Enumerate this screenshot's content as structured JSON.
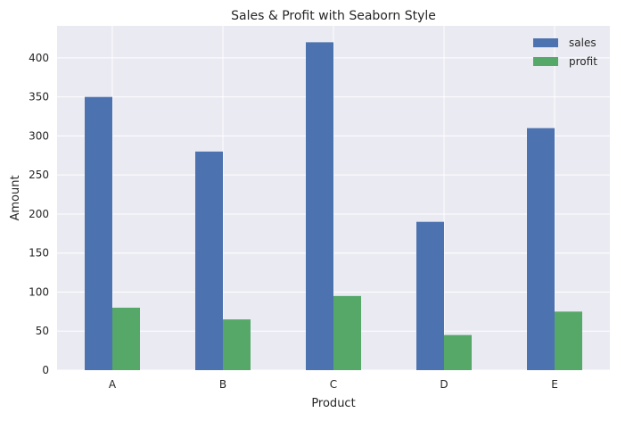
{
  "chart_data": {
    "type": "bar",
    "title": "Sales & Profit with Seaborn Style",
    "xlabel": "Product",
    "ylabel": "Amount",
    "categories": [
      "A",
      "B",
      "C",
      "D",
      "E"
    ],
    "series": [
      {
        "name": "sales",
        "values": [
          350,
          280,
          420,
          190,
          310
        ],
        "color": "#4c72b0"
      },
      {
        "name": "profit",
        "values": [
          80,
          65,
          95,
          45,
          75
        ],
        "color": "#55a868"
      }
    ],
    "ylim": [
      0,
      441
    ],
    "yticks": [
      0,
      50,
      100,
      150,
      200,
      250,
      300,
      350,
      400
    ],
    "grid": true,
    "legend_position": "top-right",
    "colors": {
      "plot_background": "#eaeaf2",
      "grid": "#ffffff",
      "text": "#262626"
    }
  }
}
